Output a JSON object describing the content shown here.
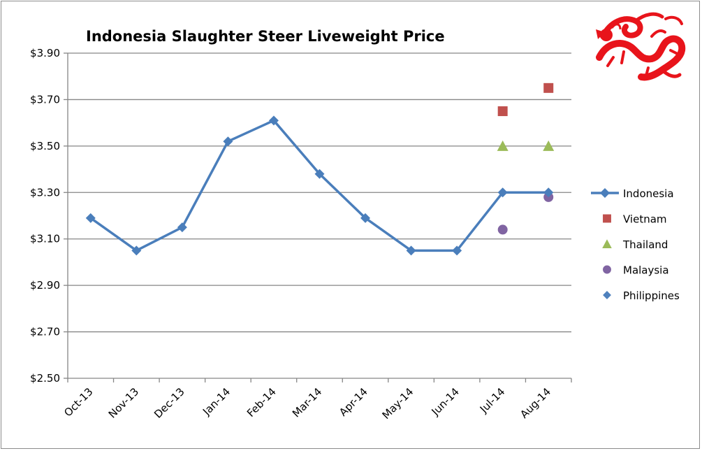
{
  "chart_data": {
    "type": "line",
    "title": "Indonesia Slaughter Steer Liveweight Price",
    "xlabel": "",
    "ylabel": "",
    "ylim": [
      2.5,
      3.9
    ],
    "y_ticks": [
      "$3.90",
      "$3.70",
      "$3.50",
      "$3.30",
      "$3.10",
      "$2.90",
      "$2.70",
      "$2.50"
    ],
    "y_tick_values": [
      3.9,
      3.7,
      3.5,
      3.3,
      3.1,
      2.9,
      2.7,
      2.5
    ],
    "categories": [
      "Oct-13",
      "Nov-13",
      "Dec-13",
      "Jan-14",
      "Feb-14",
      "Mar-14",
      "Apr-14",
      "May-14",
      "Jun-14",
      "Jul-14",
      "Aug-14"
    ],
    "grid": "horizontal",
    "legend_position": "right",
    "series": [
      {
        "name": "Indonesia",
        "style": "line-diamond",
        "color": "#4a7ebb",
        "values": [
          3.19,
          3.05,
          3.15,
          3.52,
          3.61,
          3.38,
          3.19,
          3.05,
          3.05,
          3.3,
          3.3
        ]
      },
      {
        "name": "Vietnam",
        "style": "square",
        "color": "#c0504d",
        "values": [
          null,
          null,
          null,
          null,
          null,
          null,
          null,
          null,
          null,
          3.65,
          3.75
        ]
      },
      {
        "name": "Thailand",
        "style": "triangle",
        "color": "#9bbb59",
        "values": [
          null,
          null,
          null,
          null,
          null,
          null,
          null,
          null,
          null,
          3.5,
          3.5
        ]
      },
      {
        "name": "Malaysia",
        "style": "circle",
        "color": "#8064a2",
        "values": [
          null,
          null,
          null,
          null,
          null,
          null,
          null,
          null,
          null,
          3.14,
          3.28
        ]
      },
      {
        "name": "Philippines",
        "style": "diamond",
        "color": "#4f81bd",
        "values": [
          null,
          null,
          null,
          null,
          null,
          null,
          null,
          null,
          null,
          null,
          null
        ]
      }
    ]
  },
  "logo": {
    "icon": "dragon-icon",
    "color": "#e8141b"
  }
}
